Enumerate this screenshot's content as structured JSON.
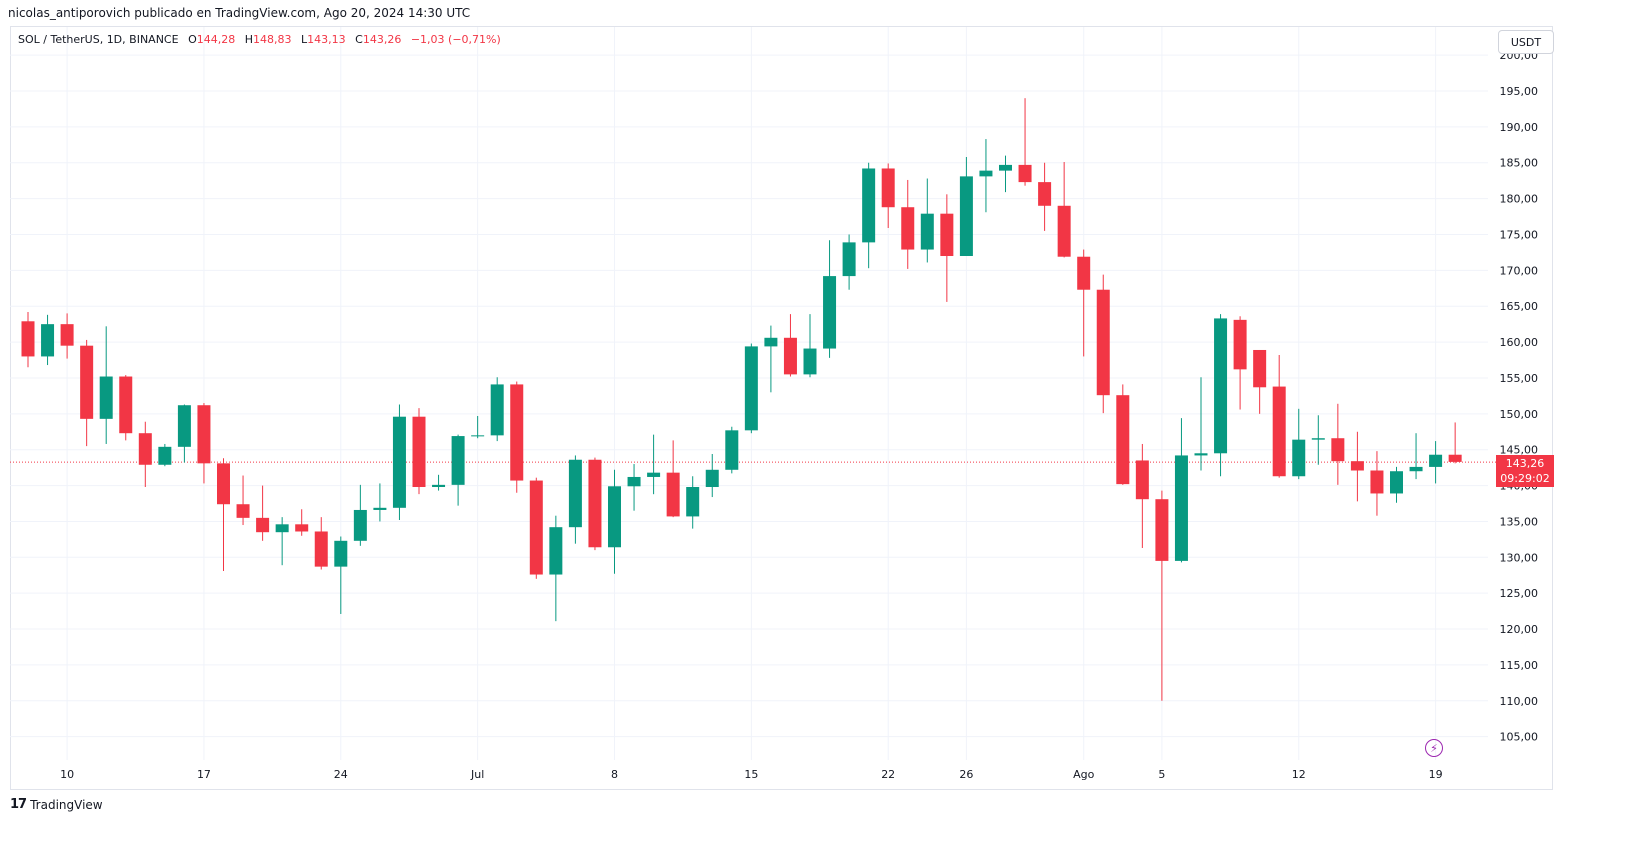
{
  "header": {
    "text": "nicolas_antiporovich publicado en TradingView.com, Ago 20, 2024 14:30 UTC"
  },
  "legend": {
    "symbol": "SOL / TetherUS, 1D, BINANCE",
    "o_label": "O",
    "o_value": "144,28",
    "h_label": "H",
    "h_value": "148,83",
    "l_label": "L",
    "l_value": "143,13",
    "c_label": "C",
    "c_value": "143,26",
    "change": "−1,03 (−0,71%)"
  },
  "unit_button": "USDT",
  "last_price": {
    "price": "143,26",
    "countdown": "09:29:02"
  },
  "brand": {
    "name": "TradingView"
  },
  "colors": {
    "up": "#089981",
    "down": "#f23645",
    "grid": "#f0f3fa",
    "text": "#131722"
  },
  "chart_data": {
    "type": "candlestick",
    "y_ticks": [
      "200,00",
      "195,00",
      "190,00",
      "185,00",
      "180,00",
      "175,00",
      "170,00",
      "165,00",
      "160,00",
      "155,00",
      "150,00",
      "145,00",
      "140,00",
      "135,00",
      "130,00",
      "125,00",
      "120,00",
      "115,00",
      "110,00",
      "105,00"
    ],
    "x_ticks": [
      {
        "label": "10",
        "index": 2
      },
      {
        "label": "17",
        "index": 9
      },
      {
        "label": "24",
        "index": 16
      },
      {
        "label": "Jul",
        "index": 23
      },
      {
        "label": "8",
        "index": 30
      },
      {
        "label": "15",
        "index": 37
      },
      {
        "label": "22",
        "index": 44
      },
      {
        "label": "26",
        "index": 48
      },
      {
        "label": "Ago",
        "index": 54
      },
      {
        "label": "5",
        "index": 58
      },
      {
        "label": "12",
        "index": 65
      },
      {
        "label": "19",
        "index": 72
      }
    ],
    "ylim": [
      102,
      203
    ],
    "last_close": 143.26,
    "candles": [
      [
        162.9,
        164.2,
        156.5,
        158.0
      ],
      [
        158.0,
        163.8,
        156.8,
        162.5
      ],
      [
        162.5,
        164.0,
        157.7,
        159.5
      ],
      [
        159.5,
        160.3,
        145.5,
        149.3
      ],
      [
        149.3,
        162.2,
        145.8,
        155.2
      ],
      [
        155.2,
        155.4,
        146.3,
        147.3
      ],
      [
        147.3,
        148.9,
        139.8,
        142.9
      ],
      [
        142.9,
        145.8,
        142.7,
        145.4
      ],
      [
        145.4,
        151.3,
        143.2,
        151.2
      ],
      [
        151.2,
        151.5,
        140.3,
        143.1
      ],
      [
        143.1,
        143.8,
        128.1,
        137.4
      ],
      [
        137.4,
        141.4,
        134.5,
        135.5
      ],
      [
        135.5,
        140.0,
        132.3,
        133.5
      ],
      [
        133.5,
        135.6,
        128.9,
        134.6
      ],
      [
        134.6,
        136.7,
        133.0,
        133.6
      ],
      [
        133.6,
        135.6,
        128.3,
        128.7
      ],
      [
        128.7,
        132.9,
        122.1,
        132.3
      ],
      [
        132.3,
        140.1,
        131.6,
        136.6
      ],
      [
        136.6,
        140.3,
        135.0,
        136.9
      ],
      [
        136.9,
        151.3,
        135.2,
        149.6
      ],
      [
        149.6,
        150.8,
        138.8,
        139.8
      ],
      [
        139.8,
        141.5,
        139.3,
        140.1
      ],
      [
        140.1,
        147.1,
        137.2,
        146.9
      ],
      [
        146.9,
        149.7,
        146.6,
        147.0
      ],
      [
        147.0,
        155.1,
        146.2,
        154.1
      ],
      [
        154.1,
        154.5,
        139.0,
        140.7
      ],
      [
        140.7,
        141.1,
        127.0,
        127.6
      ],
      [
        127.6,
        135.8,
        121.1,
        134.2
      ],
      [
        134.2,
        144.2,
        131.9,
        143.6
      ],
      [
        143.6,
        143.9,
        131.0,
        131.4
      ],
      [
        131.4,
        142.2,
        127.7,
        139.9
      ],
      [
        139.9,
        143.0,
        136.5,
        141.2
      ],
      [
        141.2,
        147.1,
        138.8,
        141.8
      ],
      [
        141.8,
        146.3,
        135.6,
        135.7
      ],
      [
        135.7,
        141.3,
        134.0,
        139.8
      ],
      [
        139.8,
        144.4,
        138.4,
        142.2
      ],
      [
        142.2,
        148.2,
        141.7,
        147.7
      ],
      [
        147.7,
        159.8,
        147.3,
        159.4
      ],
      [
        159.4,
        162.3,
        153.0,
        160.6
      ],
      [
        160.6,
        163.9,
        155.2,
        155.5
      ],
      [
        155.5,
        163.9,
        155.1,
        159.1
      ],
      [
        159.1,
        174.2,
        157.8,
        169.2
      ],
      [
        169.2,
        175.0,
        167.3,
        173.9
      ],
      [
        173.9,
        185.0,
        170.3,
        184.2
      ],
      [
        184.2,
        184.9,
        175.9,
        178.8
      ],
      [
        178.8,
        182.6,
        170.2,
        172.9
      ],
      [
        172.9,
        182.8,
        171.1,
        177.9
      ],
      [
        177.9,
        180.6,
        165.6,
        172.0
      ],
      [
        172.0,
        185.8,
        172.0,
        183.1
      ],
      [
        183.1,
        188.3,
        178.1,
        183.9
      ],
      [
        183.9,
        186.0,
        180.9,
        184.7
      ],
      [
        184.7,
        194.0,
        181.8,
        182.3
      ],
      [
        182.3,
        185.0,
        175.5,
        179.0
      ],
      [
        179.0,
        185.1,
        171.8,
        171.9
      ],
      [
        171.9,
        172.9,
        158.0,
        167.3
      ],
      [
        167.3,
        169.4,
        150.1,
        152.6
      ],
      [
        152.6,
        154.1,
        140.1,
        140.2
      ],
      [
        143.5,
        145.8,
        131.3,
        138.1
      ],
      [
        138.1,
        139.3,
        110.0,
        129.5
      ],
      [
        129.5,
        149.4,
        129.3,
        144.2
      ],
      [
        144.2,
        155.1,
        142.1,
        144.5
      ],
      [
        144.5,
        163.9,
        141.3,
        163.3
      ],
      [
        163.1,
        163.6,
        150.6,
        156.2
      ],
      [
        158.9,
        158.9,
        150.0,
        153.7
      ],
      [
        153.8,
        158.2,
        141.1,
        141.3
      ],
      [
        141.3,
        150.7,
        140.9,
        146.4
      ],
      [
        146.4,
        149.8,
        142.9,
        146.6
      ],
      [
        146.6,
        151.4,
        140.1,
        143.4
      ],
      [
        143.4,
        147.5,
        137.8,
        142.1
      ],
      [
        142.1,
        144.8,
        135.8,
        138.9
      ],
      [
        138.9,
        142.6,
        137.6,
        142.0
      ],
      [
        142.0,
        147.3,
        140.9,
        142.6
      ],
      [
        142.6,
        146.2,
        140.3,
        144.3
      ],
      [
        144.3,
        148.8,
        143.1,
        143.3
      ]
    ]
  }
}
